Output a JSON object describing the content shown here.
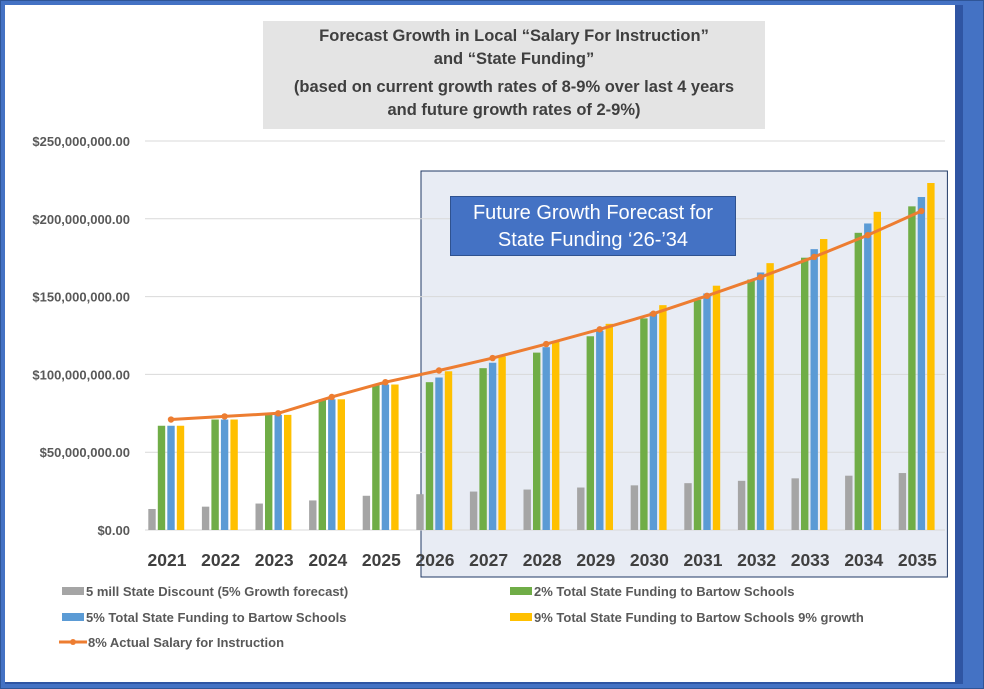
{
  "colors": {
    "discount": "#a5a5a5",
    "green": "#70ad47",
    "blue": "#5b9bd5",
    "yellow": "#ffc000",
    "line": "#ed7d31",
    "highlight_fill": "#e8ecf4",
    "highlight_border": "#1f3864"
  },
  "title": {
    "line1": "Forecast Growth in Local “Salary For Instruction”",
    "line2": "and “State Funding”",
    "line3": "(based on current growth rates of 8-9% over last 4 years",
    "line4": "and future growth rates of 2-9%)"
  },
  "callout": {
    "line1": "Future Growth Forecast for",
    "line2": "State Funding ‘26-’34"
  },
  "chart_data": {
    "type": "bar",
    "categories": [
      "2021",
      "2022",
      "2023",
      "2024",
      "2025",
      "2026",
      "2027",
      "2028",
      "2029",
      "2030",
      "2031",
      "2032",
      "2033",
      "2034",
      "2035"
    ],
    "ylim": [
      0,
      250000000
    ],
    "yticks": [
      0,
      50000000,
      100000000,
      150000000,
      200000000,
      250000000
    ],
    "ytick_labels": [
      "$0.00",
      "$50,000,000.00",
      "$100,000,000.00",
      "$150,000,000.00",
      "$200,000,000.00",
      "$250,000,000.00"
    ],
    "grid": true,
    "highlight_range": [
      "2026",
      "2035"
    ],
    "series": [
      {
        "name": "5 mill State Discount (5% Growth forecast)",
        "kind": "bar",
        "values": [
          13500000,
          15000000,
          17000000,
          19000000,
          22000000,
          23000000,
          24700000,
          26000000,
          27300000,
          28700000,
          30100000,
          31600000,
          33200000,
          34900000,
          36600000
        ]
      },
      {
        "name": "2% Total State Funding to Bartow Schools",
        "kind": "bar",
        "values": [
          67000000,
          71000000,
          74000000,
          84000000,
          93500000,
          95000000,
          104000000,
          114000000,
          124500000,
          136000000,
          148000000,
          161000000,
          175000000,
          191000000,
          208000000
        ]
      },
      {
        "name": "5% Total State Funding to Bartow Schools",
        "kind": "bar",
        "values": [
          67000000,
          71000000,
          74000000,
          84000000,
          93500000,
          98000000,
          107500000,
          117500000,
          128000000,
          140000000,
          152000000,
          165500000,
          180500000,
          197000000,
          214000000
        ]
      },
      {
        "name": "9% Total State Funding to Bartow Schools 9% growth",
        "kind": "bar",
        "values": [
          67000000,
          71000000,
          74000000,
          84000000,
          93500000,
          102000000,
          111500000,
          121500000,
          132500000,
          144500000,
          157000000,
          171500000,
          187000000,
          204500000,
          223000000
        ]
      },
      {
        "name": "8% Actual Salary for Instruction",
        "kind": "line",
        "values": [
          71000000,
          73000000,
          75000000,
          85500000,
          95000000,
          102500000,
          110500000,
          119500000,
          129000000,
          139000000,
          150500000,
          162500000,
          175500000,
          189500000,
          205000000
        ]
      }
    ]
  }
}
